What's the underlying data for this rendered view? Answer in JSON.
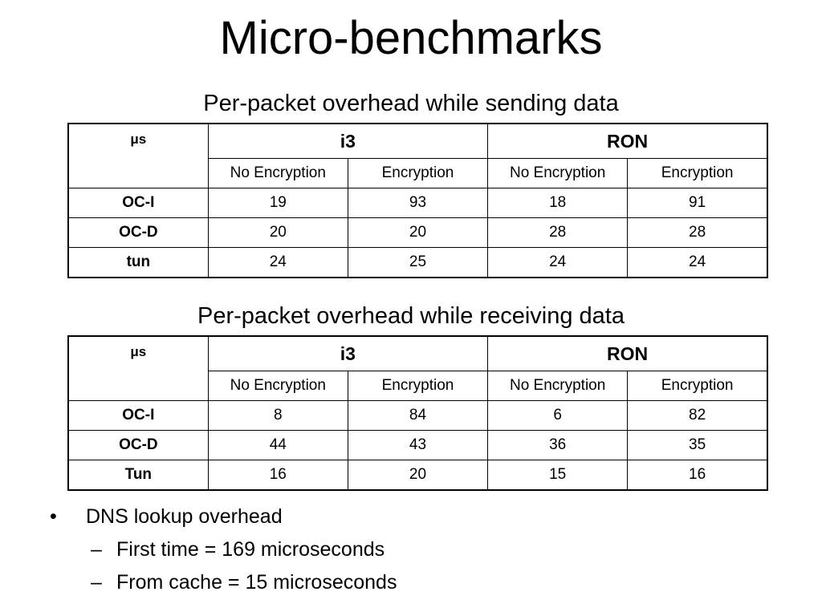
{
  "slide": {
    "title": "Micro-benchmarks"
  },
  "tables": [
    {
      "caption": "Per-packet overhead while sending data",
      "corner": "μs",
      "groups": [
        "i3",
        "RON"
      ],
      "subheaders": [
        "No Encryption",
        "Encryption",
        "No Encryption",
        "Encryption"
      ],
      "rows": [
        {
          "label": "OC-I",
          "cells": [
            "19",
            "93",
            "18",
            "91"
          ]
        },
        {
          "label": "OC-D",
          "cells": [
            "20",
            "20",
            "28",
            "28"
          ]
        },
        {
          "label": "tun",
          "cells": [
            "24",
            "25",
            "24",
            "24"
          ]
        }
      ]
    },
    {
      "caption": "Per-packet overhead while receiving data",
      "corner": "μs",
      "groups": [
        "i3",
        "RON"
      ],
      "subheaders": [
        "No Encryption",
        "Encryption",
        "No Encryption",
        "Encryption"
      ],
      "rows": [
        {
          "label": "OC-I",
          "cells": [
            "8",
            "84",
            "6",
            "82"
          ]
        },
        {
          "label": "OC-D",
          "cells": [
            "44",
            "43",
            "36",
            "35"
          ]
        },
        {
          "label": "Tun",
          "cells": [
            "16",
            "20",
            "15",
            "16"
          ]
        }
      ]
    }
  ],
  "bullets": {
    "marker": "•",
    "sub_marker": "–",
    "main": "DNS lookup overhead",
    "sub": [
      "First time = 169 microseconds",
      "From cache = 15 microseconds"
    ]
  }
}
